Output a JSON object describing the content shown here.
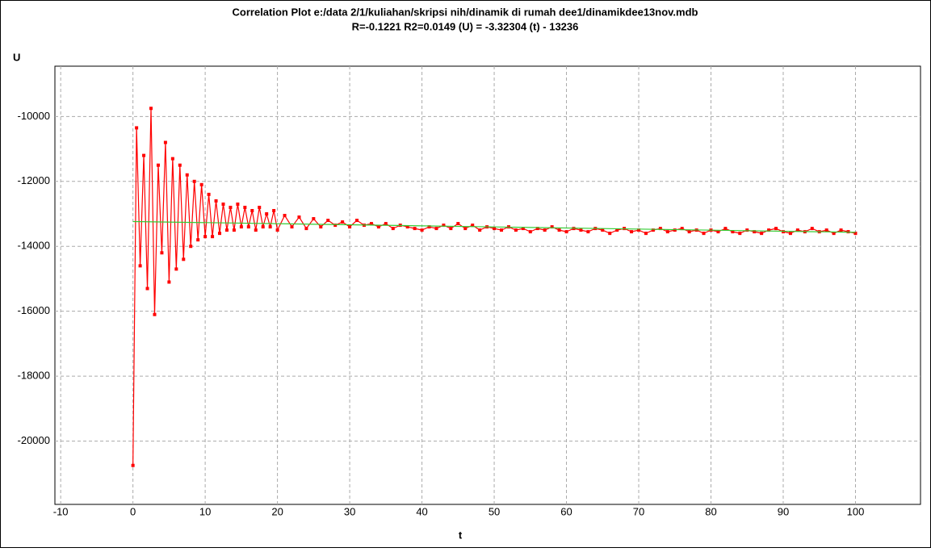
{
  "chart_data": {
    "type": "line",
    "title": "Correlation Plot e:/data 2/1/kuliahan/skripsi nih/dinamik di rumah dee1/dinamikdee13nov.mdb",
    "subtitle": "R=-0.1221 R2=0.0149     (U) = -3.32304 (t) - 13236",
    "y_label": "U",
    "x_label": "t",
    "xlim": [
      -10.8,
      109
    ],
    "ylim": [
      -21950,
      -8450
    ],
    "xticks": [
      -10,
      0,
      10,
      20,
      30,
      40,
      50,
      60,
      70,
      80,
      90,
      100
    ],
    "yticks": [
      -20000,
      -18000,
      -16000,
      -14000,
      -12000,
      -10000
    ],
    "grid": true,
    "series": [
      {
        "color": "#ff0000",
        "markers": true,
        "x": [
          0,
          0.5,
          1,
          1.5,
          2,
          2.5,
          3,
          3.5,
          4,
          4.5,
          5,
          5.5,
          6,
          6.5,
          7,
          7.5,
          8,
          8.5,
          9,
          9.5,
          10,
          10.5,
          11,
          11.5,
          12,
          12.5,
          13,
          13.5,
          14,
          14.5,
          15,
          15.5,
          16,
          16.5,
          17,
          17.5,
          18,
          18.5,
          19,
          19.5,
          20,
          21,
          22,
          23,
          24,
          25,
          26,
          27,
          28,
          29,
          30,
          31,
          32,
          33,
          34,
          35,
          36,
          37,
          38,
          39,
          40,
          41,
          42,
          43,
          44,
          45,
          46,
          47,
          48,
          49,
          50,
          51,
          52,
          53,
          54,
          55,
          56,
          57,
          58,
          59,
          60,
          61,
          62,
          63,
          64,
          65,
          66,
          67,
          68,
          69,
          70,
          71,
          72,
          73,
          74,
          75,
          76,
          77,
          78,
          79,
          80,
          81,
          82,
          83,
          84,
          85,
          86,
          87,
          88,
          89,
          90,
          91,
          92,
          93,
          94,
          95,
          96,
          97,
          98,
          99,
          100
        ],
        "values": [
          -20750,
          -10350,
          -14600,
          -11200,
          -15300,
          -9750,
          -16100,
          -11500,
          -14200,
          -10800,
          -15100,
          -11300,
          -14700,
          -11500,
          -14400,
          -11800,
          -14000,
          -12000,
          -13800,
          -12100,
          -13700,
          -12400,
          -13700,
          -12600,
          -13600,
          -12700,
          -13500,
          -12800,
          -13500,
          -12700,
          -13400,
          -12800,
          -13400,
          -12900,
          -13500,
          -12800,
          -13400,
          -13000,
          -13400,
          -12900,
          -13500,
          -13050,
          -13400,
          -13100,
          -13450,
          -13150,
          -13400,
          -13200,
          -13350,
          -13250,
          -13400,
          -13200,
          -13350,
          -13300,
          -13400,
          -13300,
          -13450,
          -13350,
          -13400,
          -13450,
          -13500,
          -13400,
          -13450,
          -13350,
          -13450,
          -13300,
          -13450,
          -13350,
          -13500,
          -13400,
          -13450,
          -13500,
          -13400,
          -13500,
          -13450,
          -13550,
          -13450,
          -13500,
          -13400,
          -13500,
          -13550,
          -13450,
          -13500,
          -13550,
          -13450,
          -13500,
          -13600,
          -13500,
          -13450,
          -13550,
          -13500,
          -13600,
          -13500,
          -13450,
          -13550,
          -13500,
          -13450,
          -13550,
          -13500,
          -13600,
          -13500,
          -13550,
          -13450,
          -13550,
          -13600,
          -13500,
          -13550,
          -13600,
          -13500,
          -13450,
          -13550,
          -13600,
          -13500,
          -13550,
          -13450,
          -13550,
          -13500,
          -13600,
          -13500,
          -13550,
          -13600
        ]
      },
      {
        "color": "#33cc33",
        "markers": false,
        "x": [
          0,
          100
        ],
        "values": [
          -13236,
          -13568
        ]
      }
    ]
  }
}
